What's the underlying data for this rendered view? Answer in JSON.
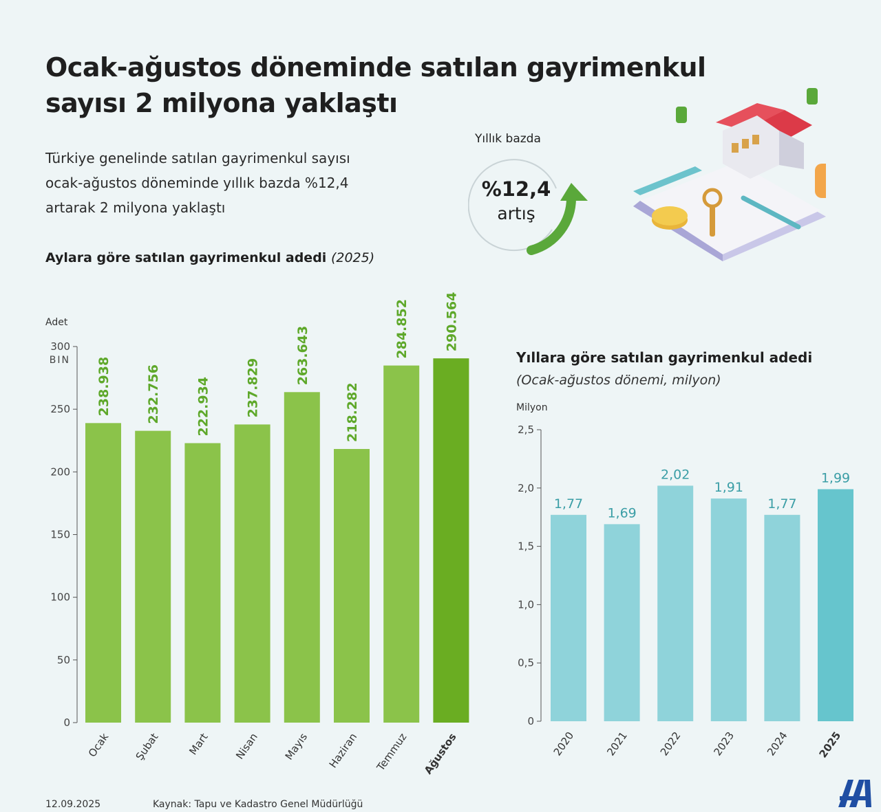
{
  "title_line1": "Ocak-ağustos döneminde satılan gayrimenkul",
  "title_line2": "sayısı 2 milyona yaklaştı",
  "intro_line1": "Türkiye genelinde satılan gayrimenkul sayısı",
  "intro_line2": "ocak-ağustos döneminde yıllık bazda %12,4",
  "intro_line3": "artarak 2 milyona yaklaştı",
  "badge": {
    "label": "Yıllık bazda",
    "value": "%12,4",
    "sub": "artış"
  },
  "colors": {
    "green": "#8bc34a",
    "green_dark": "#6aad22",
    "green_label": "#5ea82a",
    "teal": "#8fd3da",
    "teal_dark": "#66c5cd",
    "teal_label": "#3b9ea6",
    "axis": "#555555"
  },
  "chart_data": [
    {
      "type": "bar",
      "title": "Aylara göre satılan gayrimenkul adedi",
      "title_suffix": "(2025)",
      "ylabel": "Adet",
      "ylim": [
        0,
        300
      ],
      "yticks": [
        "0",
        "50",
        "100",
        "150",
        "200",
        "250",
        "300"
      ],
      "ytick_extra": "BIN",
      "categories": [
        "Ocak",
        "Şubat",
        "Mart",
        "Nisan",
        "Mayıs",
        "Haziran",
        "Temmuz",
        "Ağustos"
      ],
      "values": [
        238.938,
        232.756,
        222.934,
        237.829,
        263.643,
        218.282,
        284.852,
        290.564
      ],
      "labels": [
        "238.938",
        "232.756",
        "222.934",
        "237.829",
        "263.643",
        "218.282",
        "284.852",
        "290.564"
      ],
      "highlight_index": 7
    },
    {
      "type": "bar",
      "title": "Yıllara göre satılan gayrimenkul adedi",
      "subtitle": "(Ocak-ağustos dönemi, milyon)",
      "ylabel": "Milyon",
      "ylim": [
        0,
        2.5
      ],
      "yticks": [
        "0",
        "0,5",
        "1,0",
        "1,5",
        "2,0",
        "2,5"
      ],
      "categories": [
        "2020",
        "2021",
        "2022",
        "2023",
        "2024",
        "2025"
      ],
      "values": [
        1.77,
        1.69,
        2.02,
        1.91,
        1.77,
        1.99
      ],
      "labels": [
        "1,77",
        "1,69",
        "2,02",
        "1,91",
        "1,77",
        "1,99"
      ],
      "highlight_index": 5
    }
  ],
  "footer": {
    "date": "12.09.2025",
    "source": "Kaynak: Tapu ve Kadastro Genel Müdürlüğü",
    "logo_text": "AA"
  }
}
